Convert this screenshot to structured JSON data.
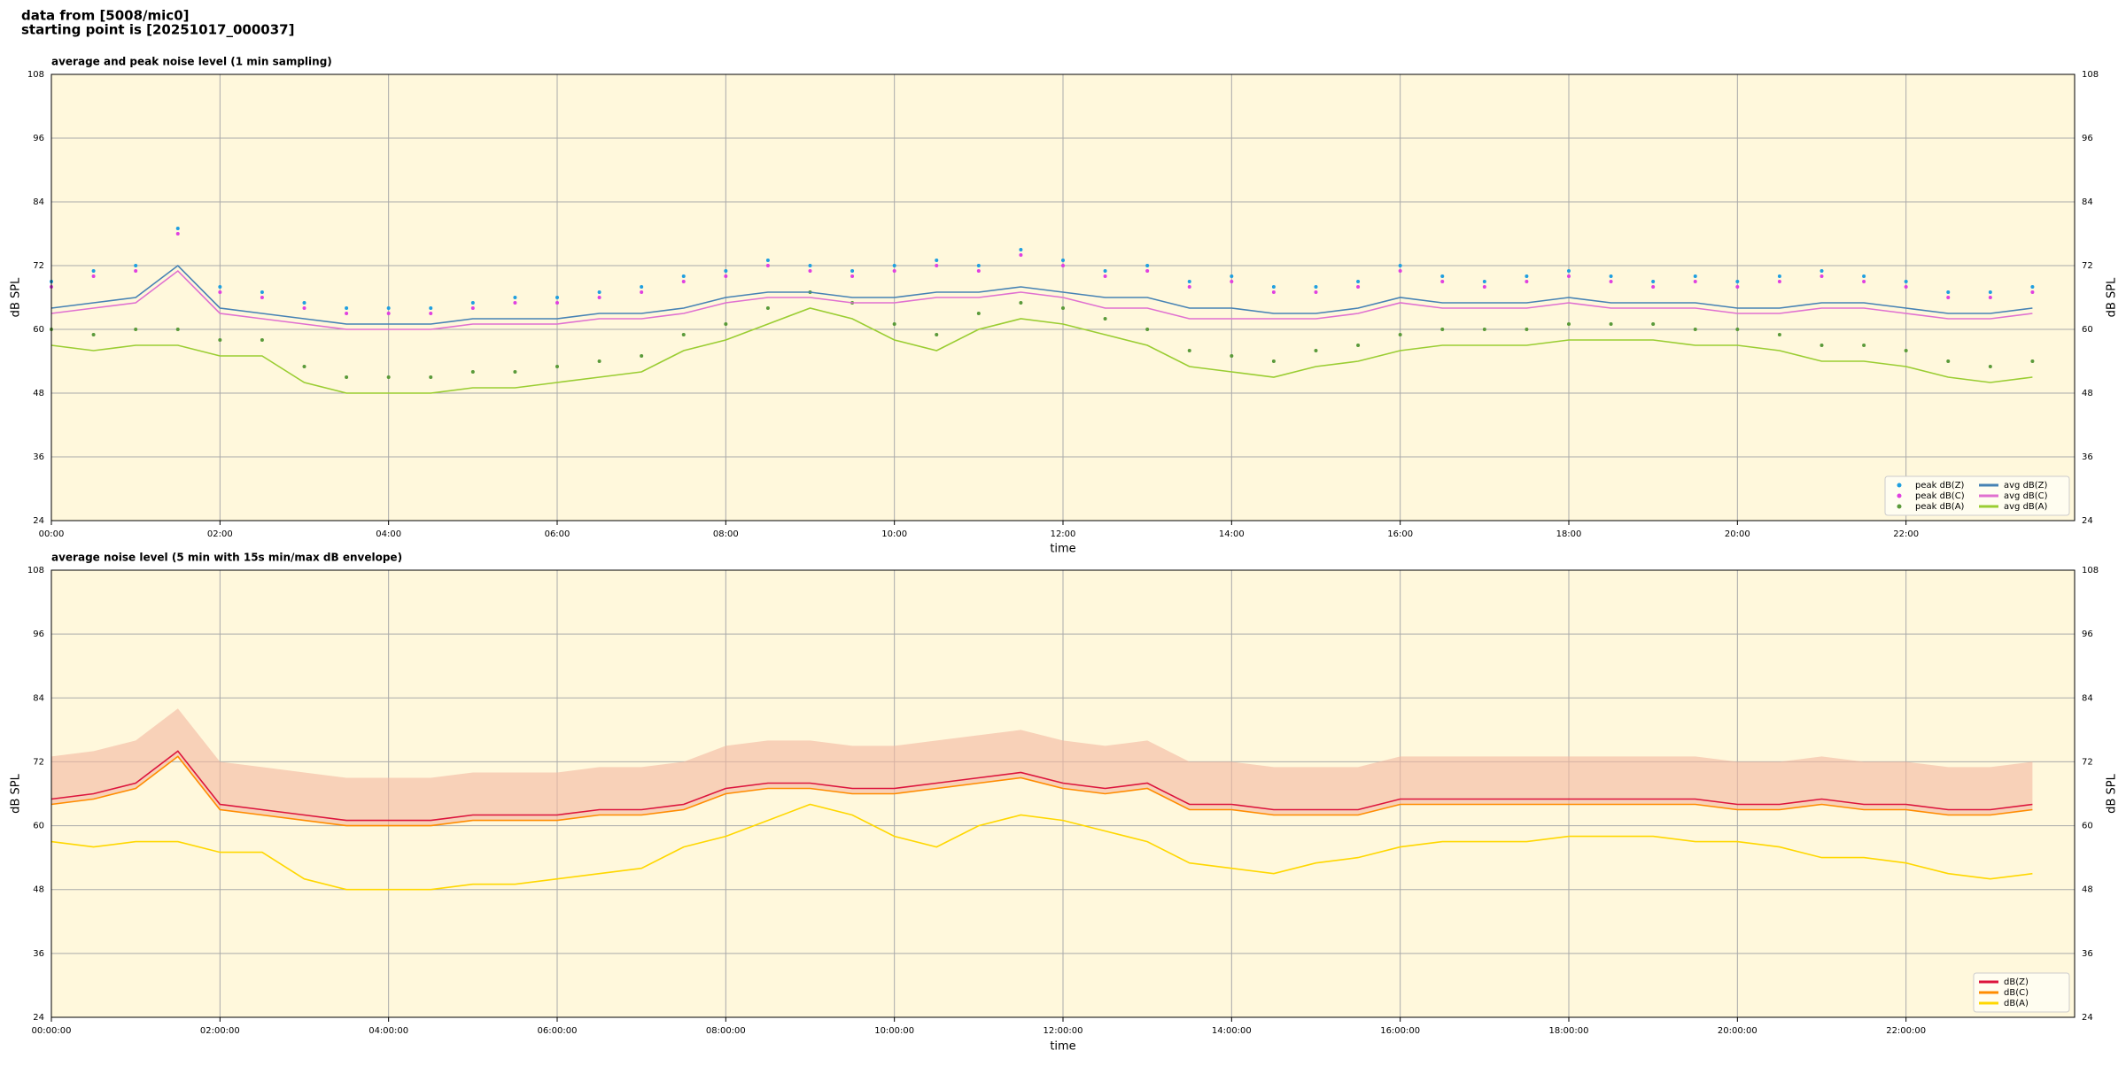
{
  "header": {
    "line1": "data from [5008/mic0]",
    "line2": "starting point is [20251017_000037]"
  },
  "chart_data": [
    {
      "type": "line",
      "title": "average and peak noise level (1 min sampling)",
      "xlabel": "time",
      "ylabel": "dB SPL",
      "xlim": [
        0,
        24
      ],
      "xticks": [
        {
          "value": 0,
          "label": "00:00"
        },
        {
          "value": 2,
          "label": "02:00"
        },
        {
          "value": 4,
          "label": "04:00"
        },
        {
          "value": 6,
          "label": "06:00"
        },
        {
          "value": 8,
          "label": "08:00"
        },
        {
          "value": 10,
          "label": "10:00"
        },
        {
          "value": 12,
          "label": "12:00"
        },
        {
          "value": 14,
          "label": "14:00"
        },
        {
          "value": 16,
          "label": "16:00"
        },
        {
          "value": 18,
          "label": "18:00"
        },
        {
          "value": 20,
          "label": "20:00"
        },
        {
          "value": 22,
          "label": "22:00"
        }
      ],
      "ylim": [
        24,
        108
      ],
      "yticks": [
        24,
        36,
        48,
        60,
        72,
        84,
        96,
        108
      ],
      "grid": true,
      "legend": "lower right",
      "legend_columns": 2,
      "x": [
        0,
        0.5,
        1,
        1.5,
        2,
        2.5,
        3,
        3.5,
        4,
        4.5,
        5,
        5.5,
        6,
        6.5,
        7,
        7.5,
        8,
        8.5,
        9,
        9.5,
        10,
        10.5,
        11,
        11.5,
        12,
        12.5,
        13,
        13.5,
        14,
        14.5,
        15,
        15.5,
        16,
        16.5,
        17,
        17.5,
        18,
        18.5,
        19,
        19.5,
        20,
        20.5,
        21,
        21.5,
        22,
        22.5,
        23,
        23.5
      ],
      "series": [
        {
          "name": "peak dB(Z)",
          "mode": "markers",
          "color": "#1f9fe0",
          "values": [
            69,
            71,
            72,
            79,
            68,
            67,
            65,
            64,
            64,
            64,
            65,
            66,
            66,
            67,
            68,
            70,
            71,
            73,
            72,
            71,
            72,
            73,
            72,
            75,
            73,
            71,
            72,
            69,
            70,
            68,
            68,
            69,
            72,
            70,
            69,
            70,
            71,
            70,
            69,
            70,
            69,
            70,
            71,
            70,
            69,
            67,
            67,
            68
          ]
        },
        {
          "name": "peak dB(C)",
          "mode": "markers",
          "color": "#e040e0",
          "values": [
            68,
            70,
            71,
            78,
            67,
            66,
            64,
            63,
            63,
            63,
            64,
            65,
            65,
            66,
            67,
            69,
            70,
            72,
            71,
            70,
            71,
            72,
            71,
            74,
            72,
            70,
            71,
            68,
            69,
            67,
            67,
            68,
            71,
            69,
            68,
            69,
            70,
            69,
            68,
            69,
            68,
            69,
            70,
            69,
            68,
            66,
            66,
            67
          ]
        },
        {
          "name": "peak dB(A)",
          "mode": "markers",
          "color": "#5a9a3a",
          "values": [
            60,
            59,
            60,
            60,
            58,
            58,
            53,
            51,
            51,
            51,
            52,
            52,
            53,
            54,
            55,
            59,
            61,
            64,
            67,
            65,
            61,
            59,
            63,
            65,
            64,
            62,
            60,
            56,
            55,
            54,
            56,
            57,
            59,
            60,
            60,
            60,
            61,
            61,
            61,
            60,
            60,
            59,
            57,
            57,
            56,
            54,
            53,
            54
          ]
        },
        {
          "name": "avg dB(Z)",
          "mode": "lines",
          "color": "#4682b4",
          "values": [
            64,
            65,
            66,
            72,
            64,
            63,
            62,
            61,
            61,
            61,
            62,
            62,
            62,
            63,
            63,
            64,
            66,
            67,
            67,
            66,
            66,
            67,
            67,
            68,
            67,
            66,
            66,
            64,
            64,
            63,
            63,
            64,
            66,
            65,
            65,
            65,
            66,
            65,
            65,
            65,
            64,
            64,
            65,
            65,
            64,
            63,
            63,
            64
          ]
        },
        {
          "name": "avg dB(C)",
          "mode": "lines",
          "color": "#e070d0",
          "values": [
            63,
            64,
            65,
            71,
            63,
            62,
            61,
            60,
            60,
            60,
            61,
            61,
            61,
            62,
            62,
            63,
            65,
            66,
            66,
            65,
            65,
            66,
            66,
            67,
            66,
            64,
            64,
            62,
            62,
            62,
            62,
            63,
            65,
            64,
            64,
            64,
            65,
            64,
            64,
            64,
            63,
            63,
            64,
            64,
            63,
            62,
            62,
            63
          ]
        },
        {
          "name": "avg dB(A)",
          "mode": "lines",
          "color": "#9acd32",
          "values": [
            57,
            56,
            57,
            57,
            55,
            55,
            50,
            48,
            48,
            48,
            49,
            49,
            50,
            51,
            52,
            56,
            58,
            61,
            64,
            62,
            58,
            56,
            60,
            62,
            61,
            59,
            57,
            53,
            52,
            51,
            53,
            54,
            56,
            57,
            57,
            57,
            58,
            58,
            58,
            57,
            57,
            56,
            54,
            54,
            53,
            51,
            50,
            51
          ]
        }
      ]
    },
    {
      "type": "line",
      "title": "average noise level (5 min with 15s min/max dB envelope)",
      "xlabel": "time",
      "ylabel": "dB SPL",
      "xlim": [
        0,
        24
      ],
      "xticks": [
        {
          "value": 0,
          "label": "00:00:00"
        },
        {
          "value": 2,
          "label": "02:00:00"
        },
        {
          "value": 4,
          "label": "04:00:00"
        },
        {
          "value": 6,
          "label": "06:00:00"
        },
        {
          "value": 8,
          "label": "08:00:00"
        },
        {
          "value": 10,
          "label": "10:00:00"
        },
        {
          "value": 12,
          "label": "12:00:00"
        },
        {
          "value": 14,
          "label": "14:00:00"
        },
        {
          "value": 16,
          "label": "16:00:00"
        },
        {
          "value": 18,
          "label": "18:00:00"
        },
        {
          "value": 20,
          "label": "20:00:00"
        },
        {
          "value": 22,
          "label": "22:00:00"
        }
      ],
      "ylim": [
        24,
        108
      ],
      "yticks": [
        24,
        36,
        48,
        60,
        72,
        84,
        96,
        108
      ],
      "grid": true,
      "legend": "lower right",
      "legend_columns": 1,
      "x": [
        0,
        0.5,
        1,
        1.5,
        2,
        2.5,
        3,
        3.5,
        4,
        4.5,
        5,
        5.5,
        6,
        6.5,
        7,
        7.5,
        8,
        8.5,
        9,
        9.5,
        10,
        10.5,
        11,
        11.5,
        12,
        12.5,
        13,
        13.5,
        14,
        14.5,
        15,
        15.5,
        16,
        16.5,
        17,
        17.5,
        18,
        18.5,
        19,
        19.5,
        20,
        20.5,
        21,
        21.5,
        22,
        22.5,
        23,
        23.5
      ],
      "envelope": {
        "color": "#f4b8a0",
        "values": [
          73,
          74,
          76,
          82,
          72,
          71,
          70,
          69,
          69,
          69,
          70,
          70,
          70,
          71,
          71,
          72,
          75,
          76,
          76,
          75,
          75,
          76,
          77,
          78,
          76,
          75,
          76,
          72,
          72,
          71,
          71,
          71,
          73,
          73,
          73,
          73,
          73,
          73,
          73,
          73,
          72,
          72,
          73,
          72,
          72,
          71,
          71,
          72
        ]
      },
      "series": [
        {
          "name": "dB(Z)",
          "mode": "lines",
          "color": "#dc143c",
          "values": [
            65,
            66,
            68,
            74,
            64,
            63,
            62,
            61,
            61,
            61,
            62,
            62,
            62,
            63,
            63,
            64,
            67,
            68,
            68,
            67,
            67,
            68,
            69,
            70,
            68,
            67,
            68,
            64,
            64,
            63,
            63,
            63,
            65,
            65,
            65,
            65,
            65,
            65,
            65,
            65,
            64,
            64,
            65,
            64,
            64,
            63,
            63,
            64
          ]
        },
        {
          "name": "dB(C)",
          "mode": "lines",
          "color": "#ff8c00",
          "values": [
            64,
            65,
            67,
            73,
            63,
            62,
            61,
            60,
            60,
            60,
            61,
            61,
            61,
            62,
            62,
            63,
            66,
            67,
            67,
            66,
            66,
            67,
            68,
            69,
            67,
            66,
            67,
            63,
            63,
            62,
            62,
            62,
            64,
            64,
            64,
            64,
            64,
            64,
            64,
            64,
            63,
            63,
            64,
            63,
            63,
            62,
            62,
            63
          ]
        },
        {
          "name": "dB(A)",
          "mode": "lines",
          "color": "#ffd700",
          "values": [
            57,
            56,
            57,
            57,
            55,
            55,
            50,
            48,
            48,
            48,
            49,
            49,
            50,
            51,
            52,
            56,
            58,
            61,
            64,
            62,
            58,
            56,
            60,
            62,
            61,
            59,
            57,
            53,
            52,
            51,
            53,
            54,
            56,
            57,
            57,
            57,
            58,
            58,
            58,
            57,
            57,
            56,
            54,
            54,
            53,
            51,
            50,
            51
          ]
        }
      ]
    }
  ]
}
